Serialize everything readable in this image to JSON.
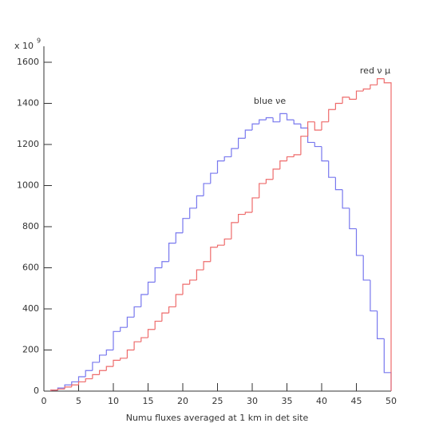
{
  "chart_data": {
    "type": "histogram",
    "xlabel": "Numu fluxes averaged at 1 km in det site",
    "scale_multiplier": "x 10",
    "scale_exponent": "9",
    "bins": [
      1,
      2,
      3,
      4,
      5,
      6,
      7,
      8,
      9,
      10,
      11,
      12,
      13,
      14,
      15,
      16,
      17,
      18,
      19,
      20,
      21,
      22,
      23,
      24,
      25,
      26,
      27,
      28,
      29,
      30,
      31,
      32,
      33,
      34,
      35,
      36,
      37,
      38,
      39,
      40,
      41,
      42,
      43,
      44,
      45,
      46,
      47,
      48,
      49,
      50
    ],
    "series": [
      {
        "name": "blue νe",
        "color": "#7878ee",
        "values": [
          5,
          15,
          30,
          45,
          70,
          100,
          140,
          175,
          200,
          290,
          310,
          360,
          410,
          470,
          530,
          600,
          630,
          720,
          770,
          840,
          890,
          950,
          1010,
          1060,
          1120,
          1140,
          1180,
          1230,
          1270,
          1300,
          1320,
          1330,
          1310,
          1350,
          1320,
          1300,
          1280,
          1210,
          1190,
          1120,
          1040,
          980,
          890,
          790,
          660,
          540,
          390,
          255,
          90
        ]
      },
      {
        "name": "red ν μ",
        "color": "#ee6b6b",
        "values": [
          5,
          10,
          20,
          30,
          45,
          60,
          80,
          100,
          120,
          150,
          160,
          200,
          240,
          260,
          300,
          340,
          380,
          410,
          470,
          520,
          540,
          590,
          630,
          700,
          710,
          740,
          820,
          860,
          870,
          940,
          1010,
          1030,
          1080,
          1120,
          1140,
          1150,
          1240,
          1310,
          1270,
          1310,
          1370,
          1400,
          1430,
          1420,
          1460,
          1470,
          1490,
          1520,
          1500
        ]
      }
    ],
    "xlim": [
      0,
      50
    ],
    "xticks": [
      0,
      5,
      10,
      15,
      20,
      25,
      30,
      35,
      40,
      45,
      50
    ],
    "ylim": [
      0,
      1600
    ],
    "yticks": [
      0,
      200,
      400,
      600,
      800,
      1000,
      1200,
      1400,
      1600
    ]
  }
}
